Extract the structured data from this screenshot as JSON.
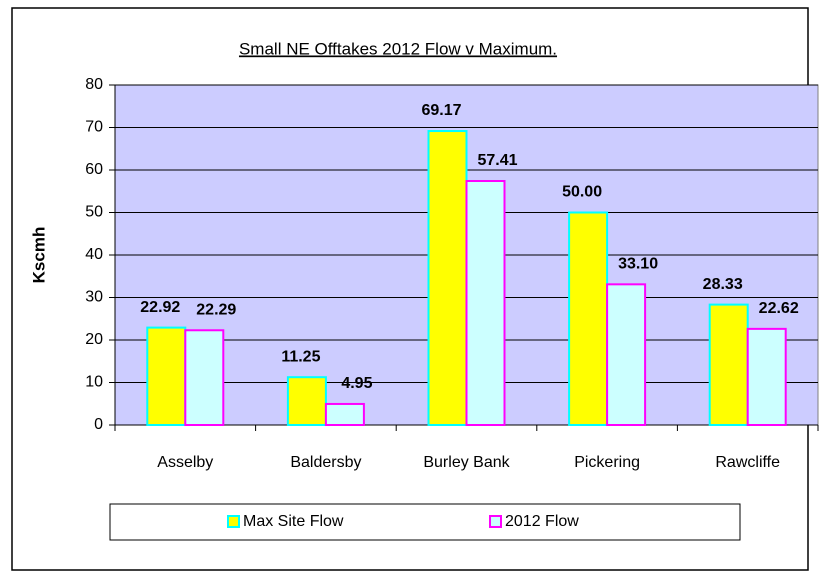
{
  "chart_data": {
    "type": "bar",
    "title": "Small NE Offtakes 2012 Flow v Maximum.",
    "y_label": "Kscmh",
    "categories": [
      "Asselby",
      "Baldersby",
      "Burley Bank",
      "Pickering",
      "Rawcliffe"
    ],
    "series": [
      {
        "name": "Max Site Flow",
        "color": "#ffff00",
        "edge": "#00ffff",
        "label_color": "#1f1fff",
        "values": [
          22.92,
          11.25,
          69.17,
          50.0,
          28.33
        ],
        "value_labels": [
          "22.92",
          "11.25",
          "69.17",
          "50.00",
          "28.33"
        ]
      },
      {
        "name": "2012 Flow",
        "color": "#ccffff",
        "edge": "#ff00ff",
        "label_color": "#000000",
        "values": [
          22.29,
          4.95,
          57.41,
          33.1,
          22.62
        ],
        "value_labels": [
          "22.29",
          "4.95",
          "57.41",
          "33.10",
          "22.62"
        ]
      }
    ],
    "ylim": [
      0,
      80
    ],
    "yticks": [
      0,
      10,
      20,
      30,
      40,
      50,
      60,
      70,
      80
    ],
    "grid": true,
    "plot_background": "#ccccff",
    "legend": "bottom"
  }
}
